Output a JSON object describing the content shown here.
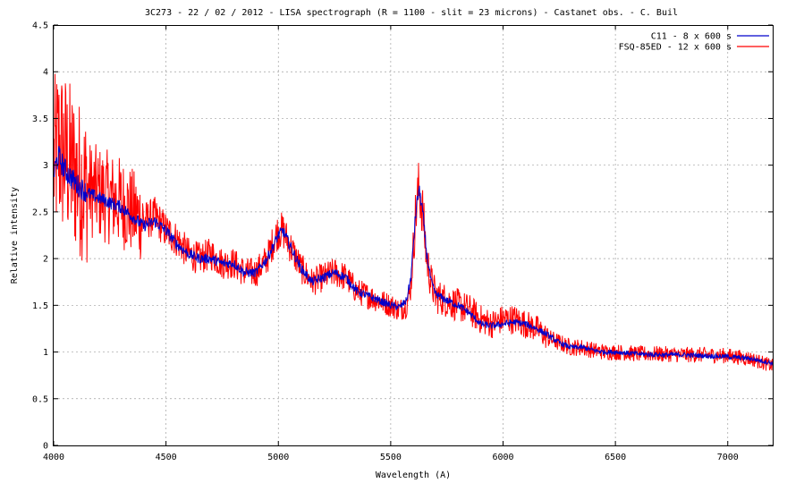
{
  "chart_data": {
    "type": "line",
    "title": "3C273 - 22 / 02 / 2012 - LISA spectrograph (R = 1100 - slit = 23 microns) - Castanet obs. - C. Buil",
    "xlabel": "Wavelength (A)",
    "ylabel": "Relative intensity",
    "xlim": [
      4000,
      7200
    ],
    "ylim": [
      0,
      4.5
    ],
    "grid": true,
    "legend_position": "top-right",
    "x_ticks": [
      "4000",
      "4500",
      "5000",
      "5500",
      "6000",
      "6500",
      "7000"
    ],
    "y_ticks": [
      "0",
      "0.5",
      "1",
      "1.5",
      "2",
      "2.5",
      "3",
      "3.5",
      "4",
      "4.5"
    ],
    "series": [
      {
        "name": "C11 - 8 x 600 s",
        "color": "#0000cc",
        "noise": 0.06,
        "x": [
          4000,
          4020,
          4050,
          4100,
          4150,
          4200,
          4250,
          4300,
          4350,
          4400,
          4450,
          4500,
          4550,
          4600,
          4650,
          4700,
          4750,
          4800,
          4850,
          4900,
          4950,
          4980,
          5000,
          5020,
          5050,
          5100,
          5150,
          5200,
          5250,
          5300,
          5350,
          5400,
          5450,
          5500,
          5540,
          5570,
          5590,
          5610,
          5625,
          5640,
          5660,
          5680,
          5700,
          5750,
          5800,
          5850,
          5900,
          5950,
          6000,
          6050,
          6100,
          6150,
          6200,
          6250,
          6300,
          6350,
          6400,
          6450,
          6500,
          6600,
          6700,
          6800,
          6900,
          7000,
          7100,
          7200
        ],
        "y": [
          2.9,
          3.1,
          2.95,
          2.8,
          2.7,
          2.65,
          2.6,
          2.55,
          2.45,
          2.35,
          2.4,
          2.3,
          2.15,
          2.05,
          2.0,
          2.0,
          1.95,
          1.95,
          1.85,
          1.85,
          2.0,
          2.15,
          2.25,
          2.3,
          2.15,
          1.9,
          1.75,
          1.8,
          1.85,
          1.8,
          1.65,
          1.6,
          1.55,
          1.5,
          1.48,
          1.55,
          1.8,
          2.45,
          2.75,
          2.55,
          2.05,
          1.75,
          1.62,
          1.55,
          1.5,
          1.42,
          1.3,
          1.28,
          1.3,
          1.32,
          1.3,
          1.25,
          1.18,
          1.1,
          1.05,
          1.05,
          1.02,
          1.0,
          1.0,
          0.98,
          0.97,
          0.97,
          0.96,
          0.95,
          0.93,
          0.88
        ]
      },
      {
        "name": "FSQ-85ED - 12 x 600 s",
        "color": "#ff0000",
        "noise": 0.35,
        "x": [
          4000,
          4020,
          4050,
          4100,
          4150,
          4200,
          4250,
          4300,
          4350,
          4400,
          4450,
          4500,
          4550,
          4600,
          4650,
          4700,
          4750,
          4800,
          4850,
          4900,
          4950,
          4980,
          5000,
          5020,
          5050,
          5100,
          5150,
          5200,
          5250,
          5300,
          5350,
          5400,
          5450,
          5500,
          5540,
          5570,
          5590,
          5610,
          5625,
          5640,
          5660,
          5680,
          5700,
          5750,
          5800,
          5850,
          5900,
          5950,
          6000,
          6050,
          6100,
          6150,
          6200,
          6250,
          6300,
          6350,
          6400,
          6450,
          6500,
          6600,
          6700,
          6800,
          6900,
          7000,
          7100,
          7200
        ],
        "y": [
          3.0,
          3.2,
          3.1,
          2.9,
          2.75,
          2.7,
          2.65,
          2.6,
          2.5,
          2.4,
          2.45,
          2.3,
          2.2,
          2.05,
          2.0,
          2.05,
          1.95,
          1.95,
          1.85,
          1.85,
          2.0,
          2.2,
          2.3,
          2.3,
          2.15,
          1.9,
          1.75,
          1.8,
          1.85,
          1.8,
          1.65,
          1.6,
          1.55,
          1.5,
          1.45,
          1.5,
          1.7,
          2.45,
          2.75,
          2.55,
          2.0,
          1.75,
          1.6,
          1.55,
          1.5,
          1.45,
          1.35,
          1.3,
          1.35,
          1.35,
          1.3,
          1.25,
          1.15,
          1.1,
          1.05,
          1.05,
          1.02,
          1.0,
          1.0,
          0.98,
          0.98,
          0.97,
          0.97,
          0.96,
          0.93,
          0.85
        ]
      }
    ]
  }
}
